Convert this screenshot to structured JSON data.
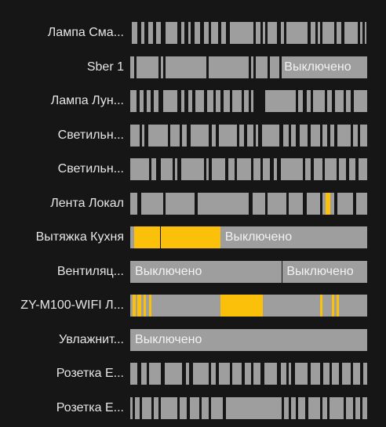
{
  "colors": {
    "background": "#161616",
    "off": "#9e9e9e",
    "on": "#fbc10a",
    "gap": "#161616"
  },
  "state_text": "Выключено",
  "rows": [
    {
      "label": "Лампа Сма...",
      "segments": [
        [
          0.5,
          3,
          "off"
        ],
        [
          4.5,
          6,
          "off"
        ],
        [
          7.5,
          9.5,
          "off"
        ],
        [
          11,
          13,
          "off"
        ],
        [
          15,
          20,
          "off"
        ],
        [
          21.5,
          23,
          "off"
        ],
        [
          24.5,
          25.5,
          "off"
        ],
        [
          27,
          29.5,
          "off"
        ],
        [
          31,
          33,
          "off"
        ],
        [
          34,
          37,
          "off"
        ],
        [
          38.5,
          40.5,
          "off"
        ],
        [
          42,
          52,
          "off"
        ],
        [
          53,
          55,
          "off"
        ],
        [
          56,
          57,
          "off"
        ],
        [
          58,
          62,
          "off"
        ],
        [
          63.5,
          65,
          "off"
        ],
        [
          66,
          75,
          "off"
        ],
        [
          76,
          78,
          "off"
        ],
        [
          79,
          80,
          "off"
        ],
        [
          81,
          86,
          "off"
        ],
        [
          87,
          89,
          "off"
        ],
        [
          90.5,
          96,
          "off"
        ],
        [
          97,
          98,
          "off"
        ],
        [
          99,
          99.6,
          "off"
        ]
      ],
      "text": []
    },
    {
      "label": "Sber 1",
      "segments": [
        [
          0,
          1.5,
          "off"
        ],
        [
          2.5,
          12,
          "off"
        ],
        [
          13,
          14,
          "off"
        ],
        [
          15,
          32,
          "off"
        ],
        [
          33,
          50,
          "off"
        ],
        [
          51,
          52,
          "off"
        ],
        [
          53,
          58,
          "off"
        ],
        [
          59,
          63,
          "off"
        ],
        [
          64,
          100,
          "off"
        ]
      ],
      "text": [
        65
      ]
    },
    {
      "label": "Лампа Лун...",
      "segments": [
        [
          0,
          2.5,
          "off"
        ],
        [
          4,
          5.5,
          "off"
        ],
        [
          7,
          8.5,
          "off"
        ],
        [
          10,
          12,
          "off"
        ],
        [
          14,
          20,
          "off"
        ],
        [
          21.5,
          23,
          "off"
        ],
        [
          24.5,
          26,
          "off"
        ],
        [
          27.5,
          31,
          "off"
        ],
        [
          32.5,
          35,
          "off"
        ],
        [
          36,
          38,
          "off"
        ],
        [
          39.5,
          42,
          "off"
        ],
        [
          43,
          47,
          "off"
        ],
        [
          48,
          50,
          "off"
        ],
        [
          51,
          52,
          "off"
        ],
        [
          57,
          70,
          "off"
        ],
        [
          71,
          73,
          "off"
        ],
        [
          74.5,
          76,
          "off"
        ],
        [
          77,
          82,
          "off"
        ],
        [
          83,
          85,
          "off"
        ],
        [
          86.5,
          90,
          "off"
        ],
        [
          91,
          93,
          "off"
        ],
        [
          94.5,
          100,
          "off"
        ]
      ],
      "text": []
    },
    {
      "label": "Светильн...",
      "segments": [
        [
          0,
          4,
          "off"
        ],
        [
          5,
          6,
          "off"
        ],
        [
          7.5,
          16,
          "off"
        ],
        [
          17,
          21,
          "off"
        ],
        [
          22,
          24,
          "off"
        ],
        [
          25.5,
          33,
          "off"
        ],
        [
          34.5,
          36,
          "off"
        ],
        [
          37.5,
          45,
          "off"
        ],
        [
          46,
          48,
          "off"
        ],
        [
          49.5,
          52,
          "off"
        ],
        [
          53,
          54,
          "off"
        ],
        [
          55.5,
          63,
          "off"
        ],
        [
          64.5,
          67,
          "off"
        ],
        [
          68,
          70,
          "off"
        ],
        [
          71.5,
          75,
          "off"
        ],
        [
          76,
          80,
          "off"
        ],
        [
          81,
          83,
          "off"
        ],
        [
          84.5,
          86,
          "off"
        ],
        [
          87.5,
          93,
          "off"
        ],
        [
          94,
          96,
          "off"
        ],
        [
          97,
          100,
          "off"
        ]
      ],
      "text": []
    },
    {
      "label": "Светильн...",
      "segments": [
        [
          0,
          8,
          "off"
        ],
        [
          9,
          11,
          "off"
        ],
        [
          13,
          18,
          "off"
        ],
        [
          19,
          20,
          "off"
        ],
        [
          21.5,
          31,
          "off"
        ],
        [
          32,
          33,
          "off"
        ],
        [
          34.5,
          40,
          "off"
        ],
        [
          41.5,
          44,
          "off"
        ],
        [
          45,
          51,
          "off"
        ],
        [
          52,
          55,
          "off"
        ],
        [
          56,
          59,
          "off"
        ],
        [
          60.5,
          62,
          "off"
        ],
        [
          63.5,
          73,
          "off"
        ],
        [
          74,
          76,
          "off"
        ],
        [
          77.5,
          81,
          "off"
        ],
        [
          82,
          87,
          "off"
        ],
        [
          88,
          91,
          "off"
        ],
        [
          92.5,
          95,
          "off"
        ],
        [
          96.5,
          100,
          "off"
        ]
      ],
      "text": []
    },
    {
      "label": "Лента Локал",
      "segments": [
        [
          0,
          3,
          "off"
        ],
        [
          4.5,
          14,
          "off"
        ],
        [
          15,
          27,
          "off"
        ],
        [
          28.5,
          50,
          "off"
        ],
        [
          51.5,
          57,
          "off"
        ],
        [
          58,
          66,
          "off"
        ],
        [
          67,
          73,
          "off"
        ],
        [
          74.5,
          80,
          "off"
        ],
        [
          81,
          82.5,
          "off"
        ],
        [
          82.5,
          84.5,
          "on"
        ],
        [
          84.5,
          86,
          "off"
        ],
        [
          87.5,
          94,
          "off"
        ],
        [
          95.5,
          100,
          "off"
        ]
      ],
      "text": []
    },
    {
      "label": "Вытяжка Кухня",
      "segments": [
        [
          0,
          1.5,
          "off"
        ],
        [
          1.5,
          12.5,
          "on"
        ],
        [
          12.8,
          38,
          "on"
        ],
        [
          38,
          100,
          "off"
        ]
      ],
      "text": [
        40
      ]
    },
    {
      "label": "Вентиляц...",
      "segments": [
        [
          0,
          63.8,
          "off"
        ],
        [
          64.2,
          100,
          "off"
        ]
      ],
      "text": [
        2,
        66
      ]
    },
    {
      "label": "ZY-M100-WIFI Л...",
      "segments": [
        [
          0,
          1,
          "off"
        ],
        [
          1,
          2.2,
          "on"
        ],
        [
          2.2,
          3,
          "off"
        ],
        [
          3,
          4.5,
          "on"
        ],
        [
          4.5,
          5.5,
          "off"
        ],
        [
          5.5,
          6.5,
          "on"
        ],
        [
          6.5,
          8,
          "off"
        ],
        [
          8,
          8.8,
          "on"
        ],
        [
          8.8,
          38,
          "off"
        ],
        [
          38,
          56,
          "on"
        ],
        [
          56,
          80,
          "off"
        ],
        [
          80,
          81,
          "on"
        ],
        [
          81,
          85,
          "off"
        ],
        [
          85,
          86,
          "on"
        ],
        [
          86,
          87,
          "off"
        ],
        [
          87,
          88,
          "on"
        ],
        [
          88,
          100,
          "off"
        ]
      ],
      "text": []
    },
    {
      "label": "Увлажнит...",
      "segments": [
        [
          0,
          100,
          "off"
        ]
      ],
      "text": [
        2
      ]
    },
    {
      "label": "Розетка E...",
      "segments": [
        [
          0,
          3,
          "off"
        ],
        [
          4.5,
          7,
          "off"
        ],
        [
          8,
          13,
          "off"
        ],
        [
          14.5,
          22,
          "off"
        ],
        [
          23.5,
          25,
          "off"
        ],
        [
          26.5,
          33,
          "off"
        ],
        [
          34,
          36,
          "off"
        ],
        [
          37.5,
          42,
          "off"
        ],
        [
          43,
          47,
          "off"
        ],
        [
          48.5,
          51,
          "off"
        ],
        [
          52,
          55,
          "off"
        ],
        [
          56.5,
          62,
          "off"
        ],
        [
          63.5,
          66,
          "off"
        ],
        [
          67,
          68,
          "off"
        ],
        [
          69.5,
          75,
          "off"
        ],
        [
          76,
          80,
          "off"
        ],
        [
          81.5,
          84,
          "off"
        ],
        [
          85,
          88,
          "off"
        ],
        [
          89.5,
          93,
          "off"
        ],
        [
          94,
          97,
          "off"
        ],
        [
          98.5,
          100,
          "off"
        ]
      ],
      "text": []
    },
    {
      "label": "Розетка E...",
      "segments": [
        [
          0,
          1,
          "off"
        ],
        [
          2,
          4,
          "off"
        ],
        [
          5,
          9,
          "off"
        ],
        [
          10,
          12,
          "off"
        ],
        [
          13,
          20,
          "off"
        ],
        [
          21,
          24,
          "off"
        ],
        [
          25,
          29,
          "off"
        ],
        [
          30,
          33,
          "off"
        ],
        [
          34,
          39,
          "off"
        ],
        [
          40.5,
          64,
          "off"
        ],
        [
          65,
          67,
          "off"
        ],
        [
          68,
          70,
          "off"
        ],
        [
          71,
          74,
          "off"
        ],
        [
          75,
          80,
          "off"
        ],
        [
          81,
          83,
          "off"
        ],
        [
          84,
          90,
          "off"
        ],
        [
          91,
          94,
          "off"
        ],
        [
          95,
          97,
          "off"
        ],
        [
          98,
          100,
          "off"
        ]
      ],
      "text": []
    }
  ]
}
